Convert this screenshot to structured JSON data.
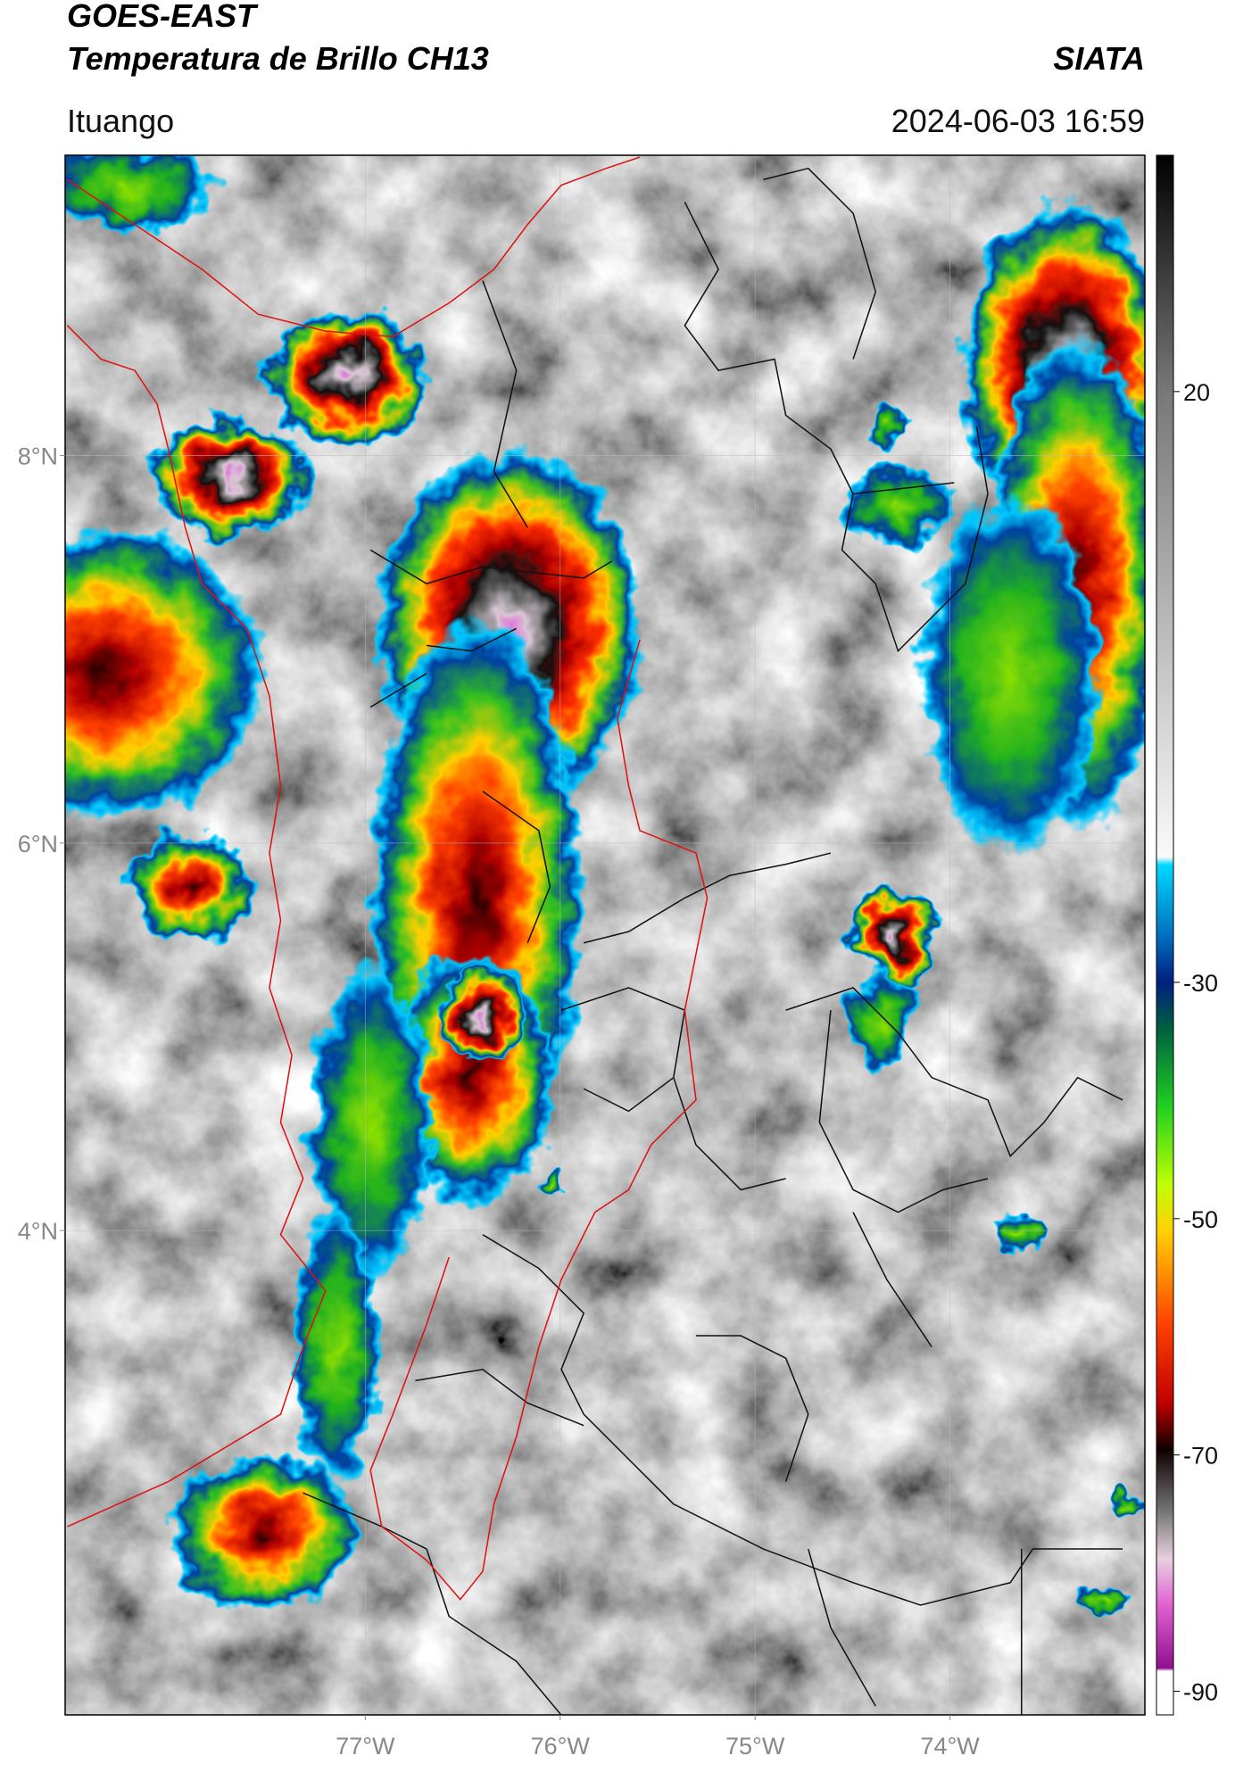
{
  "header": {
    "title": "GOES-EAST",
    "subtitle": "Temperatura de Brillo CH13",
    "source": "SIATA",
    "location": "Ituango",
    "datetime": "2024-06-03 16:59"
  },
  "map": {
    "lonlim": [
      -78.54,
      -73.0
    ],
    "latlim": [
      1.5,
      9.55
    ],
    "lon_ticks": [
      {
        "value": -77,
        "label": "77°W"
      },
      {
        "value": -76,
        "label": "76°W"
      },
      {
        "value": -75,
        "label": "75°W"
      },
      {
        "value": -74,
        "label": "74°W"
      }
    ],
    "lat_ticks": [
      {
        "value": 8,
        "label": "8°N"
      },
      {
        "value": 6,
        "label": "6°N"
      },
      {
        "value": 4,
        "label": "4°N"
      }
    ],
    "grid": true
  },
  "colorbar": {
    "lim": [
      -92,
      40
    ],
    "ticks": [
      20,
      -30,
      -50,
      -70,
      -90
    ]
  }
}
